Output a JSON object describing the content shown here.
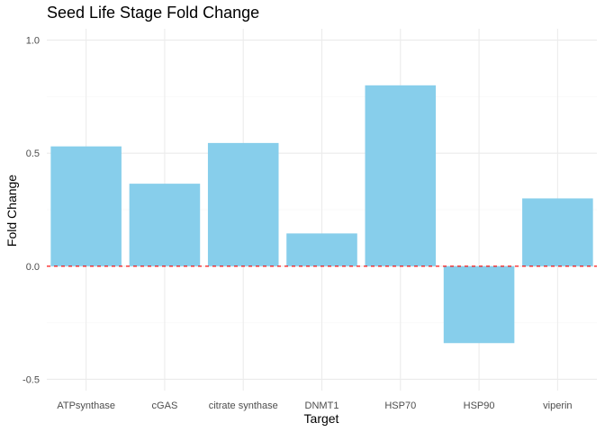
{
  "chart_data": {
    "type": "bar",
    "title": "Seed Life Stage Fold Change",
    "xlabel": "Target",
    "ylabel": "Fold Change",
    "categories": [
      "ATPsynthase",
      "cGAS",
      "citrate synthase",
      "DNMT1",
      "HSP70",
      "HSP90",
      "viperin"
    ],
    "values": [
      0.53,
      0.365,
      0.545,
      0.145,
      0.8,
      -0.34,
      0.3
    ],
    "ylim": [
      -0.5,
      1.0
    ],
    "yticks": [
      -0.5,
      0.0,
      0.5,
      1.0
    ],
    "ytick_labels": [
      "-0.5",
      "0.0",
      "0.5",
      "1.0"
    ],
    "reference_line": {
      "y": 0,
      "style": "dashed",
      "color": "#ff0000"
    },
    "bar_color": "#87ceeb",
    "grid": true,
    "legend": "none"
  }
}
